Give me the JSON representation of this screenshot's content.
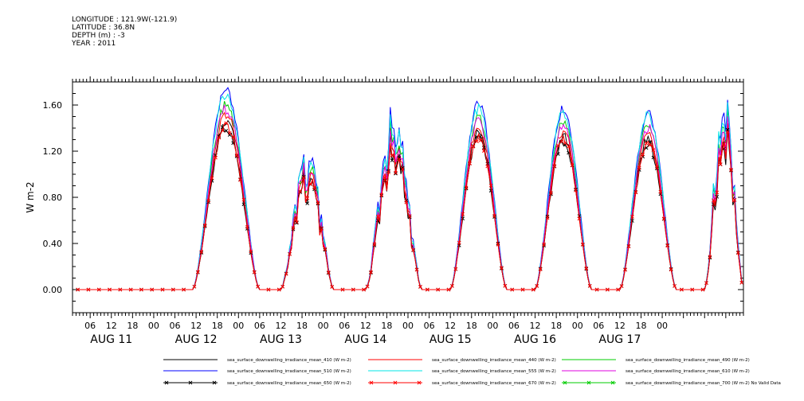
{
  "header": {
    "longitude": "LONGITUDE : 121.9W(-121.9)",
    "latitude": "LATITUDE : 36.8N",
    "depth": "DEPTH (m) : -3",
    "year": "YEAR : 2011"
  },
  "chart_data": {
    "type": "line",
    "title": "",
    "xlabel": "",
    "ylabel": "W m-2",
    "ylim": [
      -0.2,
      1.8
    ],
    "xlim_hours": [
      -23,
      167
    ],
    "yticks": [
      "0.00",
      "0.40",
      "0.80",
      "1.20",
      "1.60"
    ],
    "ytick_values": [
      0.0,
      0.4,
      0.8,
      1.2,
      1.6
    ],
    "xtick_labels": [
      "06",
      "12",
      "18",
      "00",
      "06",
      "12",
      "18",
      "00",
      "06",
      "12",
      "18",
      "00",
      "06",
      "12",
      "18",
      "00",
      "06",
      "12",
      "18",
      "00",
      "06",
      "12",
      "18",
      "00",
      "06",
      "12",
      "18",
      "00"
    ],
    "day_labels": [
      "AUG 11",
      "AUG 12",
      "AUG 13",
      "AUG 14",
      "AUG 15",
      "AUG 16",
      "AUG 17"
    ],
    "grid": false,
    "legend_position": "bottom",
    "days": [
      {
        "day": "AUG 11",
        "peak": 1.72,
        "rise": 11,
        "set": 30
      },
      {
        "day": "AUG 12",
        "peak": 1.1,
        "rise": 36,
        "set": 51
      },
      {
        "day": "AUG 13",
        "peak": 1.38,
        "rise": 60,
        "set": 76
      },
      {
        "day": "AUG 14",
        "peak": 1.6,
        "rise": 84,
        "set": 100
      },
      {
        "day": "AUG 15",
        "peak": 1.57,
        "rise": 108,
        "set": 124
      },
      {
        "day": "AUG 16",
        "peak": 1.54,
        "rise": 132,
        "set": 148
      },
      {
        "day": "AUG 17",
        "peak": 1.58,
        "rise": 156,
        "set": 167
      }
    ],
    "series": [
      {
        "name": "sea_surface_downwelling_irradiance_mean_410 (W m-2)",
        "color": "#000000",
        "scale": 0.85,
        "marker": "none"
      },
      {
        "name": "sea_surface_downwelling_irradiance_mean_440 (W m-2)",
        "color": "#ff0000",
        "scale": 0.88,
        "marker": "none"
      },
      {
        "name": "sea_surface_downwelling_irradiance_mean_490 (W m-2)",
        "color": "#00cc00",
        "scale": 0.93,
        "marker": "none"
      },
      {
        "name": "sea_surface_downwelling_irradiance_mean_510 (W m-2)",
        "color": "#0000ff",
        "scale": 1.0,
        "marker": "none"
      },
      {
        "name": "sea_surface_downwelling_irradiance_mean_555 (W m-2)",
        "color": "#00e5e5",
        "scale": 0.98,
        "marker": "none"
      },
      {
        "name": "sea_surface_downwelling_irradiance_mean_610 (W m-2)",
        "color": "#e000e0",
        "scale": 0.91,
        "marker": "none"
      },
      {
        "name": "sea_surface_downwelling_irradiance_mean_650 (W m-2)",
        "color": "#000000",
        "scale": 0.82,
        "marker": "x"
      },
      {
        "name": "sea_surface_downwelling_irradiance_mean_670 (W m-2)",
        "color": "#ff0000",
        "scale": 0.83,
        "marker": "x"
      },
      {
        "name": "sea_surface_downwelling_irradiance_mean_700 (W m-2) No Valid Data",
        "color": "#00cc00",
        "scale": 0,
        "marker": "x"
      }
    ]
  }
}
